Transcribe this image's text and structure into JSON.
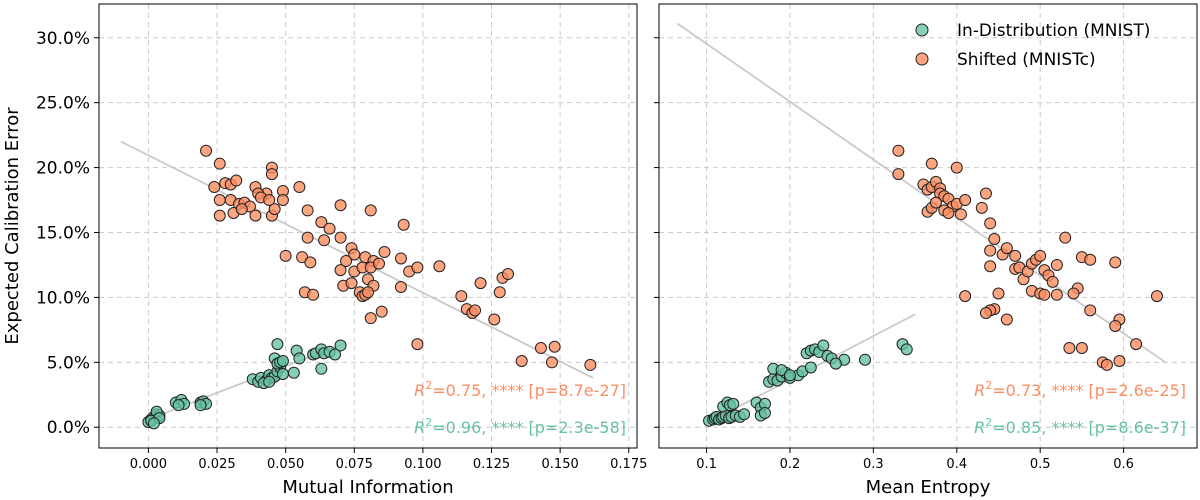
{
  "colors": {
    "in_distribution": "#66c2a5",
    "shifted": "#fc8d62",
    "trend": "#bdbdbd"
  },
  "shared": {
    "ylabel": "Expected Calibration Error",
    "yticks": [
      "0.0%",
      "5.0%",
      "10.0%",
      "15.0%",
      "20.0%",
      "25.0%",
      "30.0%"
    ],
    "legend": [
      "In-Distribution (MNIST)",
      "Shifted (MNISTc)"
    ]
  },
  "chart_data": [
    {
      "type": "scatter",
      "xlabel": "Mutual Information",
      "ylabel": "Expected Calibration Error",
      "xlim": [
        -0.018,
        0.178
      ],
      "ylim": [
        -1.6,
        32.6
      ],
      "x_ticks": [
        "0.000",
        "0.025",
        "0.050",
        "0.075",
        "0.100",
        "0.125",
        "0.150",
        "0.175"
      ],
      "x_tick_values": [
        0,
        0.025,
        0.05,
        0.075,
        0.1,
        0.125,
        0.15,
        0.175
      ],
      "y_tick_values": [
        0,
        5,
        10,
        15,
        20,
        25,
        30
      ],
      "grid": true,
      "annotations": [
        {
          "series": "Shifted (MNISTc)",
          "r2": "=0.75, **** [p=8.7e-27]"
        },
        {
          "series": "In-Distribution (MNIST)",
          "r2": "=0.96, **** [p=2.3e-58]"
        }
      ],
      "series": [
        {
          "name": "Shifted (MNISTc)",
          "trend": [
            [
              -0.01,
              22.0
            ],
            [
              0.162,
              3.8
            ]
          ],
          "points": [
            [
              0.021,
              21.3
            ],
            [
              0.026,
              20.3
            ],
            [
              0.045,
              20.0
            ],
            [
              0.045,
              19.5
            ],
            [
              0.024,
              18.5
            ],
            [
              0.028,
              18.8
            ],
            [
              0.03,
              18.7
            ],
            [
              0.032,
              19.0
            ],
            [
              0.039,
              18.5
            ],
            [
              0.043,
              18.0
            ],
            [
              0.049,
              18.2
            ],
            [
              0.055,
              18.5
            ],
            [
              0.026,
              17.5
            ],
            [
              0.03,
              17.5
            ],
            [
              0.033,
              17.2
            ],
            [
              0.035,
              17.3
            ],
            [
              0.037,
              17.0
            ],
            [
              0.04,
              18.0
            ],
            [
              0.041,
              17.7
            ],
            [
              0.044,
              17.5
            ],
            [
              0.049,
              17.5
            ],
            [
              0.026,
              16.3
            ],
            [
              0.031,
              16.5
            ],
            [
              0.034,
              16.8
            ],
            [
              0.039,
              16.3
            ],
            [
              0.045,
              16.3
            ],
            [
              0.046,
              16.8
            ],
            [
              0.058,
              16.7
            ],
            [
              0.07,
              17.1
            ],
            [
              0.081,
              16.7
            ],
            [
              0.058,
              14.6
            ],
            [
              0.063,
              15.8
            ],
            [
              0.064,
              14.4
            ],
            [
              0.066,
              15.3
            ],
            [
              0.07,
              14.6
            ],
            [
              0.074,
              13.8
            ],
            [
              0.075,
              13.3
            ],
            [
              0.079,
              13.1
            ],
            [
              0.082,
              12.8
            ],
            [
              0.086,
              13.5
            ],
            [
              0.093,
              15.6
            ],
            [
              0.05,
              13.2
            ],
            [
              0.056,
              13.1
            ],
            [
              0.059,
              12.7
            ],
            [
              0.07,
              12.1
            ],
            [
              0.072,
              12.8
            ],
            [
              0.075,
              12.0
            ],
            [
              0.078,
              12.3
            ],
            [
              0.08,
              11.4
            ],
            [
              0.081,
              12.3
            ],
            [
              0.082,
              10.9
            ],
            [
              0.084,
              12.6
            ],
            [
              0.092,
              13.0
            ],
            [
              0.095,
              12.0
            ],
            [
              0.098,
              12.3
            ],
            [
              0.106,
              12.4
            ],
            [
              0.057,
              10.4
            ],
            [
              0.06,
              10.2
            ],
            [
              0.071,
              10.9
            ],
            [
              0.074,
              11.1
            ],
            [
              0.077,
              10.4
            ],
            [
              0.078,
              10.1
            ],
            [
              0.079,
              10.2
            ],
            [
              0.08,
              10.4
            ],
            [
              0.092,
              10.8
            ],
            [
              0.081,
              8.4
            ],
            [
              0.085,
              8.9
            ],
            [
              0.098,
              6.4
            ],
            [
              0.114,
              10.1
            ],
            [
              0.116,
              9.1
            ],
            [
              0.118,
              8.8
            ],
            [
              0.119,
              9.0
            ],
            [
              0.121,
              11.1
            ],
            [
              0.126,
              8.3
            ],
            [
              0.128,
              10.4
            ],
            [
              0.129,
              11.5
            ],
            [
              0.131,
              11.8
            ],
            [
              0.136,
              5.1
            ],
            [
              0.143,
              6.1
            ],
            [
              0.147,
              5.0
            ],
            [
              0.148,
              6.2
            ],
            [
              0.161,
              4.8
            ]
          ]
        },
        {
          "name": "In-Distribution (MNIST)",
          "trend": [
            [
              0.0,
              0.6
            ],
            [
              0.072,
              6.5
            ]
          ],
          "points": [
            [
              0.0,
              0.4
            ],
            [
              0.001,
              0.6
            ],
            [
              0.002,
              0.8
            ],
            [
              0.003,
              1.0
            ],
            [
              0.004,
              0.9
            ],
            [
              0.003,
              1.2
            ],
            [
              0.001,
              0.5
            ],
            [
              0.004,
              0.7
            ],
            [
              0.002,
              0.3
            ],
            [
              0.01,
              1.9
            ],
            [
              0.012,
              2.1
            ],
            [
              0.013,
              1.8
            ],
            [
              0.011,
              1.7
            ],
            [
              0.019,
              1.9
            ],
            [
              0.02,
              2.0
            ],
            [
              0.021,
              1.8
            ],
            [
              0.019,
              1.7
            ],
            [
              0.038,
              3.7
            ],
            [
              0.04,
              3.5
            ],
            [
              0.041,
              3.8
            ],
            [
              0.043,
              3.6
            ],
            [
              0.044,
              4.0
            ],
            [
              0.045,
              3.8
            ],
            [
              0.046,
              3.9
            ],
            [
              0.047,
              4.3
            ],
            [
              0.048,
              4.6
            ],
            [
              0.049,
              4.1
            ],
            [
              0.046,
              5.3
            ],
            [
              0.047,
              4.9
            ],
            [
              0.048,
              5.0
            ],
            [
              0.049,
              5.1
            ],
            [
              0.047,
              6.4
            ],
            [
              0.053,
              4.2
            ],
            [
              0.054,
              5.9
            ],
            [
              0.055,
              5.3
            ],
            [
              0.06,
              5.6
            ],
            [
              0.061,
              5.7
            ],
            [
              0.063,
              6.0
            ],
            [
              0.064,
              5.7
            ],
            [
              0.066,
              5.8
            ],
            [
              0.068,
              5.6
            ],
            [
              0.07,
              6.3
            ],
            [
              0.063,
              4.5
            ],
            [
              0.042,
              3.4
            ],
            [
              0.044,
              3.5
            ]
          ]
        }
      ]
    },
    {
      "type": "scatter",
      "xlabel": "Mean Entropy",
      "ylabel": "",
      "xlim": [
        0.043,
        0.688
      ],
      "ylim": [
        -1.6,
        32.6
      ],
      "x_ticks": [
        "0.1",
        "0.2",
        "0.3",
        "0.4",
        "0.5",
        "0.6"
      ],
      "x_tick_values": [
        0.1,
        0.2,
        0.3,
        0.4,
        0.5,
        0.6
      ],
      "y_tick_values": [
        0,
        5,
        10,
        15,
        20,
        25,
        30
      ],
      "grid": true,
      "legend_position": "top-right",
      "annotations": [
        {
          "series": "Shifted (MNISTc)",
          "r2": "=0.73, **** [p=2.6e-25]"
        },
        {
          "series": "In-Distribution (MNIST)",
          "r2": "=0.85, **** [p=8.6e-37]"
        }
      ],
      "series": [
        {
          "name": "Shifted (MNISTc)",
          "trend": [
            [
              0.065,
              31.1
            ],
            [
              0.65,
              5.0
            ]
          ],
          "points": [
            [
              0.33,
              21.3
            ],
            [
              0.33,
              19.5
            ],
            [
              0.37,
              20.3
            ],
            [
              0.4,
              20.0
            ],
            [
              0.36,
              18.7
            ],
            [
              0.365,
              18.3
            ],
            [
              0.37,
              18.5
            ],
            [
              0.375,
              18.9
            ],
            [
              0.38,
              18.4
            ],
            [
              0.38,
              18.0
            ],
            [
              0.385,
              17.8
            ],
            [
              0.39,
              17.6
            ],
            [
              0.395,
              17.0
            ],
            [
              0.4,
              17.2
            ],
            [
              0.365,
              16.6
            ],
            [
              0.37,
              16.9
            ],
            [
              0.375,
              17.3
            ],
            [
              0.385,
              16.7
            ],
            [
              0.39,
              16.5
            ],
            [
              0.405,
              16.4
            ],
            [
              0.41,
              17.5
            ],
            [
              0.43,
              16.9
            ],
            [
              0.435,
              18.0
            ],
            [
              0.44,
              15.7
            ],
            [
              0.445,
              14.5
            ],
            [
              0.44,
              13.6
            ],
            [
              0.455,
              13.3
            ],
            [
              0.46,
              13.8
            ],
            [
              0.47,
              13.2
            ],
            [
              0.47,
              12.2
            ],
            [
              0.475,
              12.3
            ],
            [
              0.48,
              11.4
            ],
            [
              0.485,
              12.0
            ],
            [
              0.49,
              12.6
            ],
            [
              0.495,
              12.9
            ],
            [
              0.5,
              13.2
            ],
            [
              0.505,
              12.1
            ],
            [
              0.51,
              11.7
            ],
            [
              0.515,
              11.2
            ],
            [
              0.52,
              12.5
            ],
            [
              0.53,
              14.6
            ],
            [
              0.545,
              10.7
            ],
            [
              0.55,
              13.1
            ],
            [
              0.56,
              12.9
            ],
            [
              0.59,
              12.7
            ],
            [
              0.44,
              12.4
            ],
            [
              0.45,
              10.3
            ],
            [
              0.49,
              10.5
            ],
            [
              0.5,
              10.3
            ],
            [
              0.505,
              10.2
            ],
            [
              0.52,
              10.2
            ],
            [
              0.54,
              10.3
            ],
            [
              0.41,
              10.1
            ],
            [
              0.445,
              9.1
            ],
            [
              0.44,
              9.0
            ],
            [
              0.46,
              8.3
            ],
            [
              0.56,
              9.0
            ],
            [
              0.595,
              8.3
            ],
            [
              0.59,
              7.8
            ],
            [
              0.535,
              6.1
            ],
            [
              0.55,
              6.1
            ],
            [
              0.575,
              5.0
            ],
            [
              0.58,
              4.8
            ],
            [
              0.595,
              5.1
            ],
            [
              0.615,
              6.4
            ],
            [
              0.64,
              10.1
            ],
            [
              0.435,
              8.8
            ]
          ]
        },
        {
          "name": "In-Distribution (MNIST)",
          "trend": [
            [
              0.1,
              0.3
            ],
            [
              0.35,
              8.7
            ]
          ],
          "points": [
            [
              0.103,
              0.5
            ],
            [
              0.108,
              0.6
            ],
            [
              0.11,
              0.7
            ],
            [
              0.112,
              0.8
            ],
            [
              0.115,
              0.6
            ],
            [
              0.118,
              0.7
            ],
            [
              0.12,
              0.8
            ],
            [
              0.123,
              0.9
            ],
            [
              0.127,
              0.7
            ],
            [
              0.13,
              0.8
            ],
            [
              0.135,
              0.9
            ],
            [
              0.14,
              0.8
            ],
            [
              0.145,
              1.0
            ],
            [
              0.12,
              1.6
            ],
            [
              0.125,
              1.9
            ],
            [
              0.128,
              1.7
            ],
            [
              0.132,
              1.8
            ],
            [
              0.16,
              1.9
            ],
            [
              0.165,
              1.5
            ],
            [
              0.17,
              1.8
            ],
            [
              0.165,
              0.9
            ],
            [
              0.17,
              1.1
            ],
            [
              0.175,
              3.5
            ],
            [
              0.18,
              3.7
            ],
            [
              0.185,
              3.6
            ],
            [
              0.19,
              3.9
            ],
            [
              0.195,
              4.2
            ],
            [
              0.2,
              3.8
            ],
            [
              0.21,
              4.0
            ],
            [
              0.215,
              4.3
            ],
            [
              0.18,
              4.5
            ],
            [
              0.19,
              4.4
            ],
            [
              0.22,
              5.7
            ],
            [
              0.225,
              5.9
            ],
            [
              0.23,
              6.0
            ],
            [
              0.235,
              5.8
            ],
            [
              0.24,
              6.3
            ],
            [
              0.245,
              5.5
            ],
            [
              0.25,
              5.3
            ],
            [
              0.265,
              5.2
            ],
            [
              0.29,
              5.2
            ],
            [
              0.335,
              6.4
            ],
            [
              0.34,
              6.0
            ],
            [
              0.255,
              4.9
            ],
            [
              0.225,
              4.6
            ],
            [
              0.2,
              4.0
            ]
          ]
        }
      ]
    }
  ]
}
